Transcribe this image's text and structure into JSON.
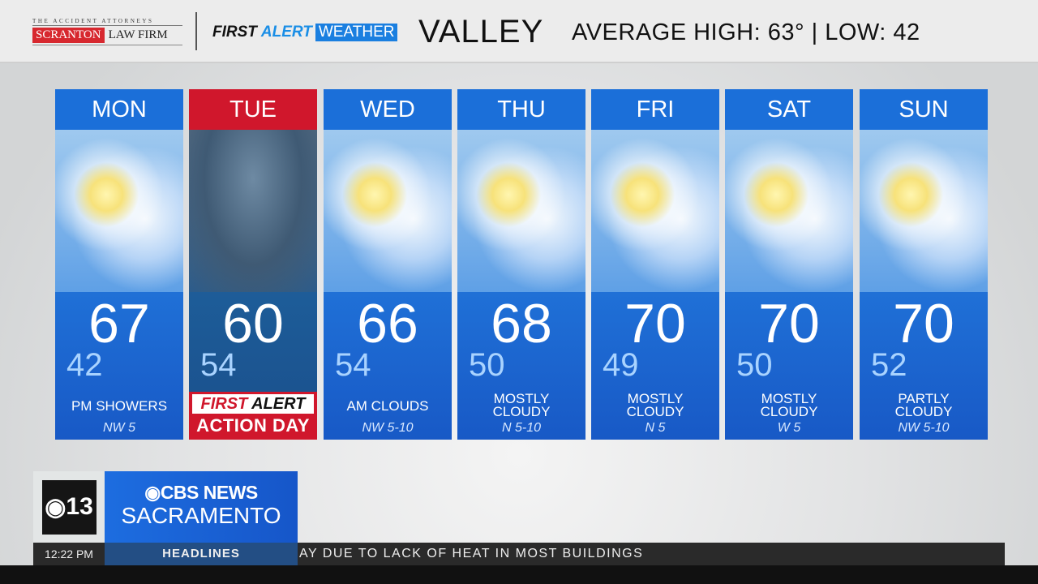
{
  "header": {
    "sponsor": {
      "tagline": "THE ACCIDENT ATTORNEYS",
      "name_red": "SCRANTON",
      "name_rest": "LAW FIRM"
    },
    "brand": {
      "first": "FIRST",
      "alert": "ALERT",
      "weather": "WEATHER"
    },
    "region": "VALLEY",
    "average": "AVERAGE HIGH: 63° | LOW: 42"
  },
  "days": [
    {
      "day": "MON",
      "high": "67",
      "low": "42",
      "condition": "PM SHOWERS",
      "wind": "NW 5"
    },
    {
      "day": "TUE",
      "high": "60",
      "low": "54",
      "alert_line1_a": "FIRST",
      "alert_line1_b": "ALERT",
      "alert_line2": "ACTION DAY",
      "header_color": "#d0172c"
    },
    {
      "day": "WED",
      "high": "66",
      "low": "54",
      "condition": "AM CLOUDS",
      "wind": "NW 5-10"
    },
    {
      "day": "THU",
      "high": "68",
      "low": "50",
      "condition": "MOSTLY CLOUDY",
      "wind": "N 5-10"
    },
    {
      "day": "FRI",
      "high": "70",
      "low": "49",
      "condition": "MOSTLY CLOUDY",
      "wind": "N 5"
    },
    {
      "day": "SAT",
      "high": "70",
      "low": "50",
      "condition": "MOSTLY CLOUDY",
      "wind": "W 5"
    },
    {
      "day": "SUN",
      "high": "70",
      "low": "52",
      "condition": "PARTLY CLOUDY",
      "wind": "NW 5-10"
    }
  ],
  "station": {
    "channel": "13",
    "network": "CBS NEWS",
    "city": "SACRAMENTO"
  },
  "ticker": {
    "time": "12:22 PM",
    "label": "HEADLINES",
    "text": "AY DUE TO LACK OF HEAT IN MOST BUILDINGS"
  },
  "colors": {
    "accent_blue": "#1b6fd9",
    "alert_red": "#d0172c"
  }
}
